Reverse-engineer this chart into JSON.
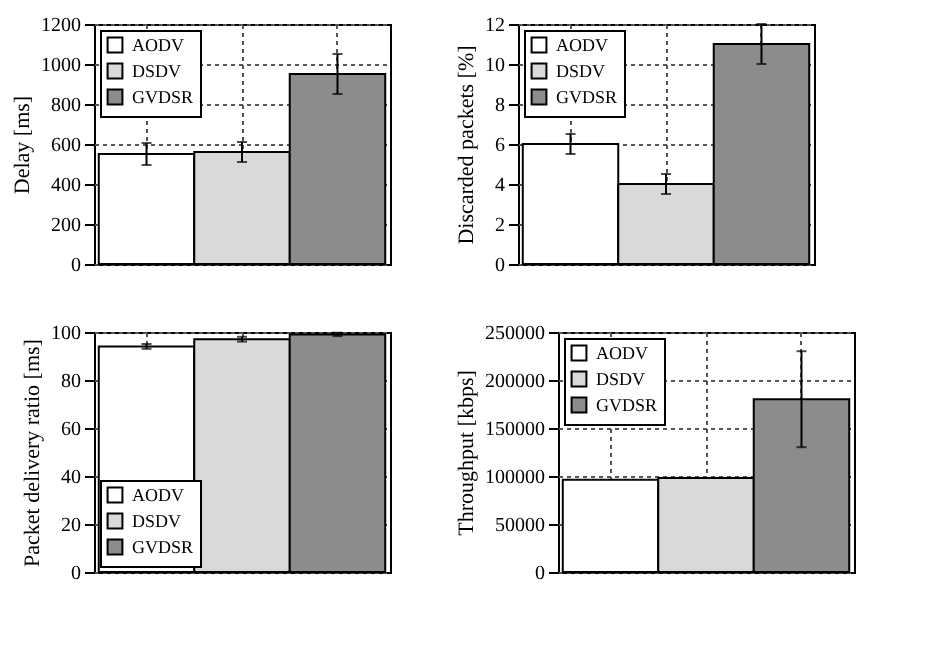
{
  "chart_data": [
    {
      "type": "bar",
      "ylabel": "Delay [ms]",
      "categories": [
        null
      ],
      "ylim": [
        0,
        1200
      ],
      "yticks": [
        0,
        200,
        400,
        600,
        800,
        1000,
        1200
      ],
      "grid": true,
      "legend": "top left",
      "series": [
        {
          "name": "AODV",
          "color": "#ffffff",
          "values": [
            550
          ],
          "errors": [
            55
          ]
        },
        {
          "name": "DSDV",
          "color": "#d9d9d9",
          "values": [
            560
          ],
          "errors": [
            50
          ]
        },
        {
          "name": "GVDSR",
          "color": "#8c8c8c",
          "values": [
            950
          ],
          "errors": [
            100
          ]
        }
      ]
    },
    {
      "type": "bar",
      "ylabel": "Discarded packets [%]",
      "categories": [
        null
      ],
      "ylim": [
        0,
        12
      ],
      "yticks": [
        0,
        2,
        4,
        6,
        8,
        10,
        12
      ],
      "grid": true,
      "legend": "top left",
      "series": [
        {
          "name": "AODV",
          "color": "#ffffff",
          "values": [
            6
          ],
          "errors": [
            0.5
          ]
        },
        {
          "name": "DSDV",
          "color": "#d9d9d9",
          "values": [
            4
          ],
          "errors": [
            0.5
          ]
        },
        {
          "name": "GVDSR",
          "color": "#8c8c8c",
          "values": [
            11
          ],
          "errors": [
            1
          ]
        }
      ]
    },
    {
      "type": "bar",
      "ylabel": "Packet delivery ratio [ms]",
      "categories": [
        null
      ],
      "ylim": [
        0,
        100
      ],
      "yticks": [
        0,
        20,
        40,
        60,
        80,
        100
      ],
      "grid": true,
      "legend": "bottom left",
      "series": [
        {
          "name": "AODV",
          "color": "#ffffff",
          "values": [
            94
          ],
          "errors": [
            1
          ]
        },
        {
          "name": "DSDV",
          "color": "#d9d9d9",
          "values": [
            97
          ],
          "errors": [
            1
          ]
        },
        {
          "name": "GVDSR",
          "color": "#8c8c8c",
          "values": [
            99
          ],
          "errors": [
            0.7
          ]
        }
      ]
    },
    {
      "type": "bar",
      "ylabel": "Throughput [kbps]",
      "categories": [
        null
      ],
      "ylim": [
        0,
        250000
      ],
      "yticks": [
        0,
        50000,
        100000,
        150000,
        200000,
        250000
      ],
      "grid": true,
      "legend": "top left",
      "series": [
        {
          "name": "AODV",
          "color": "#ffffff",
          "values": [
            96000
          ],
          "errors": [
            null
          ]
        },
        {
          "name": "DSDV",
          "color": "#d9d9d9",
          "values": [
            98000
          ],
          "errors": [
            null
          ]
        },
        {
          "name": "GVDSR",
          "color": "#8c8c8c",
          "values": [
            180000
          ],
          "errors": [
            50000
          ]
        }
      ]
    }
  ]
}
